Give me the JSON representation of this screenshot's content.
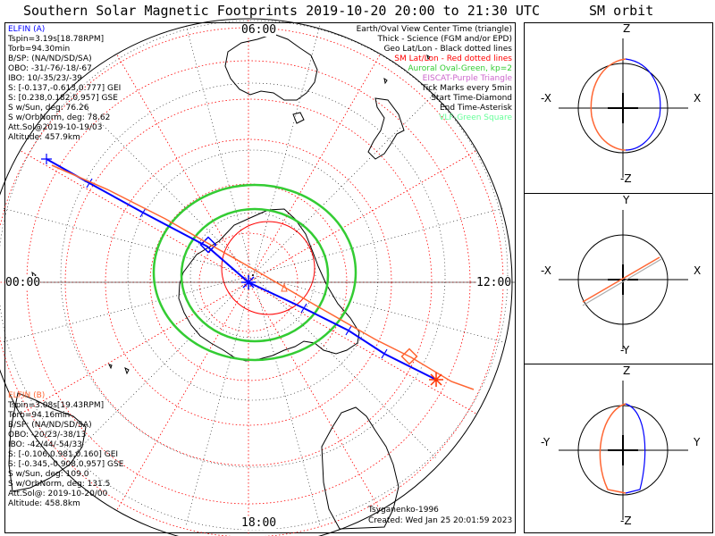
{
  "main_title": "Southern Solar Magnetic Footprints 2019-10-20 20:00 to 21:30 UTC",
  "orbit_title": "SM orbit",
  "clock_labels": {
    "top": "06:00",
    "left": "00:00",
    "right": "12:00",
    "bottom": "18:00"
  },
  "elfin_a": {
    "name": "ELFIN (A)",
    "color": "#0000ff",
    "lines": [
      "Tspin=3.19s[18.78RPM]",
      "Torb=94.30min",
      "B/SP: (NA/ND/SD/SA)",
      "OBO: -31/-76/-18/-67",
      "IBO: 10/-35/23/-39",
      "S: [-0.137,-0.613,0.777] GEI",
      "S: [0.238,0.182,0.957] GSE",
      "S w/Sun, deg: 76.26",
      "S w/OrbNorm, deg: 78.62",
      "Att.Sol@2019-10-19/03",
      "Altitude: 457.9km"
    ]
  },
  "elfin_b": {
    "name": "ELFIN (B)",
    "color": "#ff6633",
    "lines": [
      "Tspin=3.08s[19.43RPM]",
      "Torb=94.16min",
      "B/SP: (NA/ND/SD/SA)",
      "OBO: -20/23/-38/13",
      "IBO: -42/44/-54/33",
      "S: [-0.106,0.981,0.160] GEI",
      "S: [-0.345,-0.908,0.957] GSE",
      "S w/Sun, deg: 109.0",
      "S w/OrbNorm, deg: 131.5",
      "Att.Sol@: 2019-10-20/00",
      "Altitude: 458.8km"
    ]
  },
  "legend": [
    {
      "text": "Earth/Oval View Center Time (triangle)",
      "color": "#000000"
    },
    {
      "text": "Thick - Science (FGM and/or EPD)",
      "color": "#000000"
    },
    {
      "text": "Geo Lat/Lon - Black dotted lines",
      "color": "#000000"
    },
    {
      "text": "SM Lat/Lon - Red dotted lines",
      "color": "#ff0000"
    },
    {
      "text": "Auroral Oval-Green, kp=2",
      "color": "#33cc33"
    },
    {
      "text": "EISCAT-Purple Triangle",
      "color": "#cc66cc"
    },
    {
      "text": "Tick Marks every 5min",
      "color": "#000000"
    },
    {
      "text": "Start Time-Diamond",
      "color": "#000000"
    },
    {
      "text": "End Time-Asterisk",
      "color": "#000000"
    },
    {
      "text": "VLF-Green Square",
      "color": "#66ff99"
    }
  ],
  "footer": {
    "model": "Tsyganenko-1996",
    "created": "Created: Wed Jan 25 20:01:59 2023"
  },
  "orbit_panels": [
    {
      "top": "Z",
      "bottom": "-Z",
      "left": "-X",
      "right": "X"
    },
    {
      "top": "Y",
      "bottom": "-Y",
      "left": "-X",
      "right": "X"
    },
    {
      "top": "Z",
      "bottom": "-Z",
      "left": "-Y",
      "right": "Y"
    }
  ]
}
